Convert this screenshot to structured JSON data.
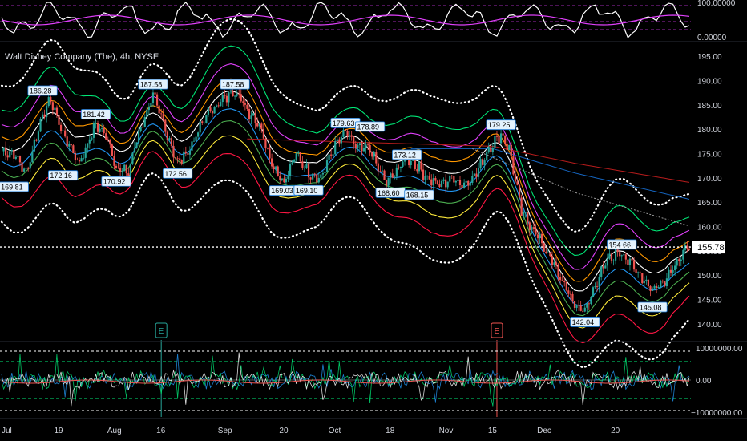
{
  "chart_data": {
    "type": "candlestick",
    "title": "Walt Disney Company (The), 4h, NYSE",
    "last_price": "155.78",
    "price_axis": {
      "ylim": [
        137,
        197
      ],
      "ticks": [
        "195.00",
        "190.00",
        "185.00",
        "180.00",
        "175.00",
        "170.00",
        "165.00",
        "160.00",
        "155.00",
        "150.00",
        "145.00",
        "140.00"
      ]
    },
    "x_axis_ticks": [
      "Jul",
      "19",
      "Aug",
      "16",
      "Sep",
      "20",
      "Oct",
      "18",
      "Nov",
      "15",
      "Dec",
      "20"
    ],
    "top_indicator": {
      "ticks": [
        "100.00000",
        "0.00000"
      ]
    },
    "bottom_indicator": {
      "ticks": [
        "10000000.00",
        "0.00",
        "−10000000.00"
      ]
    },
    "event_markers": [
      "E",
      "E"
    ],
    "price_labels": [
      "186.28",
      "172.16",
      "169.81",
      "181.42",
      "170.92",
      "187.58",
      "172.56",
      "187.58",
      "169.03",
      "169.10",
      "179.63",
      "178.89",
      "173.12",
      "168.60",
      "168.15",
      "179.25",
      "142.04",
      "154.66",
      "145.08"
    ],
    "price_path": [
      [
        0,
        175.5
      ],
      [
        6,
        175
      ],
      [
        12,
        171
      ],
      [
        20,
        183
      ],
      [
        24,
        186
      ],
      [
        30,
        179
      ],
      [
        38,
        173
      ],
      [
        46,
        181
      ],
      [
        52,
        178
      ],
      [
        56,
        172
      ],
      [
        62,
        171
      ],
      [
        66,
        178
      ],
      [
        74,
        187
      ],
      [
        80,
        180
      ],
      [
        86,
        173
      ],
      [
        92,
        176
      ],
      [
        100,
        183
      ],
      [
        108,
        186
      ],
      [
        114,
        188
      ],
      [
        120,
        184
      ],
      [
        126,
        181
      ],
      [
        132,
        173
      ],
      [
        138,
        169
      ],
      [
        144,
        175
      ],
      [
        150,
        171
      ],
      [
        156,
        170
      ],
      [
        162,
        176
      ],
      [
        168,
        179.5
      ],
      [
        174,
        176
      ],
      [
        180,
        176
      ],
      [
        184,
        172
      ],
      [
        188,
        169
      ],
      [
        192,
        171
      ],
      [
        198,
        174
      ],
      [
        204,
        172
      ],
      [
        208,
        170
      ],
      [
        214,
        168.5
      ],
      [
        220,
        170
      ],
      [
        226,
        168.5
      ],
      [
        232,
        171
      ],
      [
        238,
        176
      ],
      [
        244,
        179
      ],
      [
        248,
        176
      ],
      [
        254,
        163
      ],
      [
        262,
        158
      ],
      [
        270,
        152
      ],
      [
        276,
        147
      ],
      [
        280,
        144
      ],
      [
        285,
        142.5
      ],
      [
        290,
        148
      ],
      [
        296,
        153
      ],
      [
        302,
        155
      ],
      [
        308,
        152
      ],
      [
        312,
        150
      ],
      [
        318,
        147
      ],
      [
        324,
        149
      ],
      [
        330,
        153
      ],
      [
        336,
        156
      ]
    ],
    "label_points": [
      [
        20,
        "186.28",
        186.28,
        "above"
      ],
      [
        30,
        "172.16",
        172.16,
        "below"
      ],
      [
        6,
        "169.81",
        169.81,
        "below"
      ],
      [
        46,
        "181.42",
        181.42,
        "above"
      ],
      [
        56,
        "170.92",
        170.92,
        "below"
      ],
      [
        74,
        "187.58",
        187.58,
        "above"
      ],
      [
        86,
        "172.56",
        172.56,
        "below"
      ],
      [
        114,
        "187.58",
        187.58,
        "above"
      ],
      [
        138,
        "169.03",
        169.03,
        "below"
      ],
      [
        150,
        "169.10",
        169.1,
        "below"
      ],
      [
        168,
        "179.63",
        179.63,
        "above"
      ],
      [
        180,
        "178.89",
        178.89,
        "above"
      ],
      [
        198,
        "173.12",
        173.12,
        "above"
      ],
      [
        190,
        "168.60",
        168.6,
        "below"
      ],
      [
        204,
        "168.15",
        168.15,
        "below"
      ],
      [
        244,
        "179.25",
        179.25,
        "above"
      ],
      [
        285,
        "142.04",
        142.04,
        "below"
      ],
      [
        303,
        "154.66",
        154.66,
        "above"
      ],
      [
        318,
        "145.08",
        145.08,
        "below"
      ]
    ],
    "x_tick_positions": [
      0,
      28,
      54,
      78,
      108,
      138,
      162,
      190,
      216,
      240,
      264,
      300
    ],
    "event_positions": [
      78,
      242
    ],
    "n_bars": 337,
    "band_offsets": [
      -9,
      -6,
      -3.5,
      -1.5,
      1.5,
      3.5,
      6,
      9
    ],
    "band_colors": [
      "#ff1744",
      "#ffeb3b",
      "#4caf50",
      "#2196f3",
      "#ffffff",
      "#ff9800",
      "#e040fb",
      "#00e676"
    ],
    "band_outer": [
      -14,
      14
    ],
    "slow_ma": [
      [
        120,
        178
      ],
      [
        200,
        177
      ],
      [
        240,
        176.5
      ],
      [
        280,
        173
      ],
      [
        337,
        169
      ]
    ],
    "slow_ma2": [
      [
        200,
        176
      ],
      [
        240,
        176
      ],
      [
        280,
        171
      ],
      [
        337,
        165.5
      ]
    ],
    "slow_ma3": [
      [
        230,
        176
      ],
      [
        280,
        167
      ],
      [
        337,
        160
      ]
    ]
  }
}
